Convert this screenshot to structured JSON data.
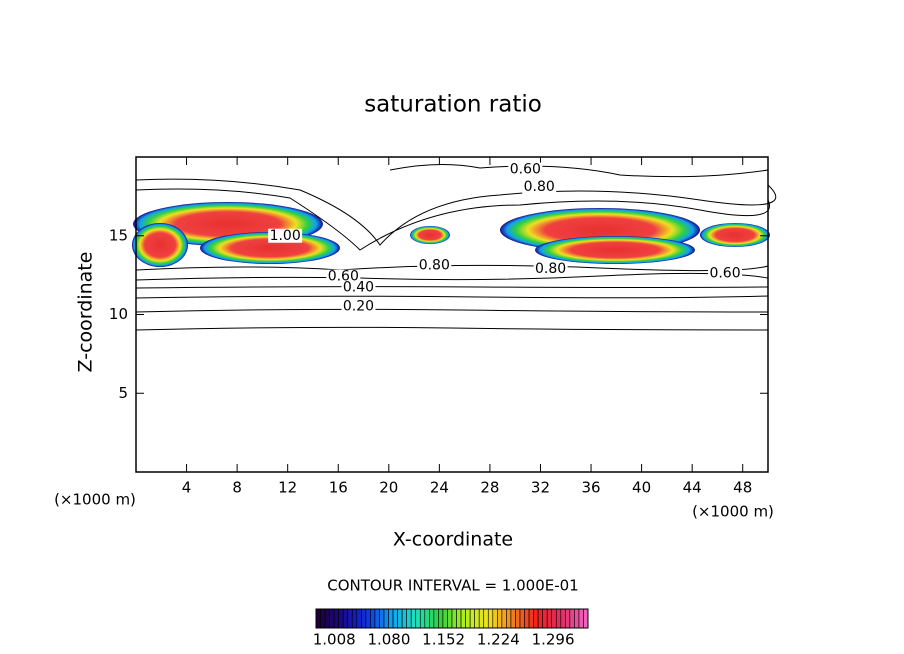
{
  "chart_data": {
    "type": "contour",
    "title": "saturation ratio",
    "x_label": "X-coordinate",
    "y_label": "Z-coordinate",
    "x_unit": "(×1000 m)",
    "y_unit": "(×1000 m)",
    "xlim": [
      0,
      50
    ],
    "xticks": [
      4,
      8,
      12,
      16,
      20,
      24,
      28,
      32,
      36,
      40,
      44,
      48
    ],
    "ylim": [
      0,
      20
    ],
    "yticks": [
      5,
      10,
      15
    ],
    "contour_note": "CONTOUR INTERVAL = 1.000E-01",
    "contour_labels": [
      {
        "text": "0.60",
        "x": 30.8,
        "y": 19.2
      },
      {
        "text": "0.80",
        "x": 31.9,
        "y": 18.1
      },
      {
        "text": "1.00",
        "x": 11.8,
        "y": 15.0
      },
      {
        "text": "0.80",
        "x": 23.6,
        "y": 13.1
      },
      {
        "text": "0.80",
        "x": 32.8,
        "y": 12.9
      },
      {
        "text": "0.60",
        "x": 46.6,
        "y": 12.6
      },
      {
        "text": "0.60",
        "x": 16.4,
        "y": 12.4
      },
      {
        "text": "0.40",
        "x": 17.6,
        "y": 11.7
      },
      {
        "text": "0.20",
        "x": 17.6,
        "y": 10.5
      }
    ],
    "colorbar": {
      "clim": [
        0.984,
        1.342
      ],
      "ticks": [
        {
          "value": 1.008,
          "label": "1.008"
        },
        {
          "value": 1.08,
          "label": "1.080"
        },
        {
          "value": 1.152,
          "label": "1.152"
        },
        {
          "value": 1.224,
          "label": "1.224"
        },
        {
          "value": 1.296,
          "label": "1.296"
        }
      ],
      "colors": [
        "#20003a",
        "#1a0a8c",
        "#1030e0",
        "#10a0f0",
        "#20e0c0",
        "#30d040",
        "#b0f020",
        "#f0e020",
        "#f08020",
        "#f02020",
        "#e03060",
        "#f060c0"
      ]
    }
  }
}
